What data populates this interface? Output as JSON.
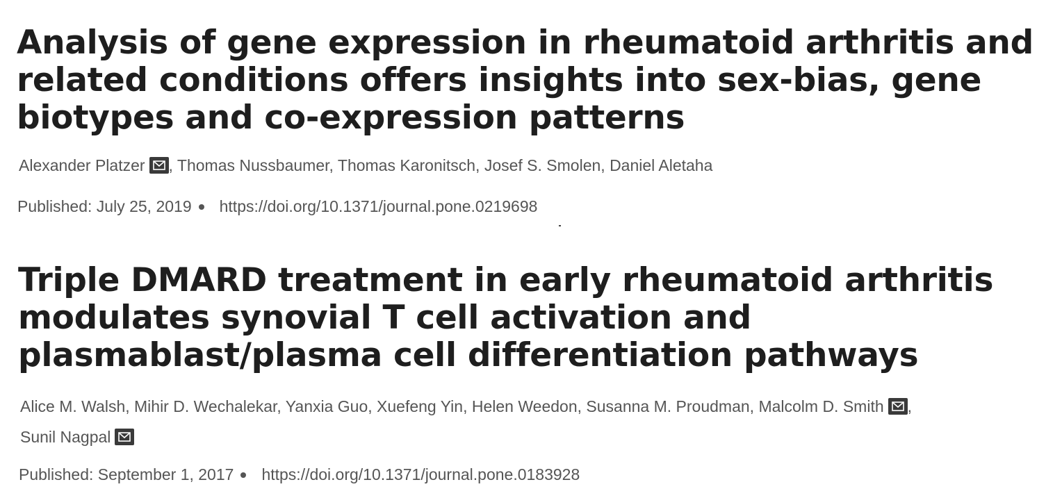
{
  "articles": [
    {
      "title_lines": [
        "Analysis of gene expression in rheumatoid arthritis and",
        "related conditions offers insights into sex-bias, gene",
        "biotypes and co-expression patterns"
      ],
      "author_lines": [
        [
          {
            "name": "Alexander Platzer",
            "email_icon": "mail-icon",
            "sep": ","
          },
          {
            "name": "Thomas Nussbaumer",
            "sep": ","
          },
          {
            "name": "Thomas Karonitsch",
            "sep": ","
          },
          {
            "name": "Josef S. Smolen",
            "sep": ","
          },
          {
            "name": "Daniel Aletaha",
            "sep": ""
          }
        ]
      ],
      "published": "Published: July 25, 2019",
      "doi": "https://doi.org/10.1371/journal.pone.0219698"
    },
    {
      "title_lines": [
        "Triple DMARD treatment in early rheumatoid arthritis",
        "modulates synovial T cell activation and",
        "plasmablast/plasma cell differentiation pathways"
      ],
      "author_lines": [
        [
          {
            "name": "Alice M. Walsh",
            "sep": ","
          },
          {
            "name": "Mihir D. Wechalekar",
            "sep": ","
          },
          {
            "name": "Yanxia Guo",
            "sep": ","
          },
          {
            "name": "Xuefeng Yin",
            "sep": ","
          },
          {
            "name": "Helen Weedon",
            "sep": ","
          },
          {
            "name": "Susanna M. Proudman",
            "sep": ","
          },
          {
            "name": "Malcolm D. Smith",
            "email_icon": "mail-icon",
            "sep": ","
          }
        ],
        [
          {
            "name": "Sunil Nagpal",
            "email_icon": "mail-icon",
            "sep": ""
          }
        ]
      ],
      "published": "Published: September 1, 2017",
      "doi": "https://doi.org/10.1371/journal.pone.0183928"
    }
  ],
  "colors": {
    "title": "#1e1e1e",
    "text": "#555555",
    "icon_bg": "#3a3a3a"
  }
}
